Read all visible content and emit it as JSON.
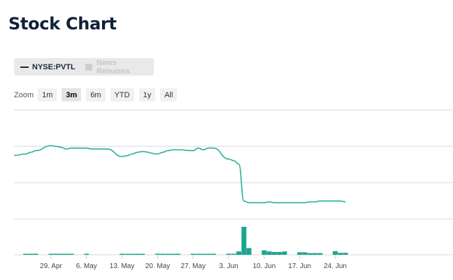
{
  "page": {
    "title": "Stock Chart"
  },
  "legend": {
    "series_label": "NYSE:PVTL",
    "news_label": "News Releases"
  },
  "zoom": {
    "label": "Zoom",
    "buttons": [
      {
        "label": "1m",
        "active": false
      },
      {
        "label": "3m",
        "active": true
      },
      {
        "label": "6m",
        "active": false
      },
      {
        "label": "YTD",
        "active": false
      },
      {
        "label": "1y",
        "active": false
      },
      {
        "label": "All",
        "active": false
      }
    ]
  },
  "colors": {
    "line": "#26b19a",
    "volume": "#1aa58e",
    "grid": "#d9d9d9",
    "title": "#0e2238"
  },
  "chart_data": {
    "type": "line",
    "title": "",
    "xlabel": "",
    "ylabel": "",
    "x_ticks": [
      "29. Apr",
      "6. May",
      "13. May",
      "20. May",
      "27. May",
      "3. Jun",
      "10. Jun",
      "17. Jun",
      "24. Jun"
    ],
    "price_index_range": [
      0,
      100
    ],
    "series": [
      {
        "name": "NYSE:PVTL",
        "points": [
          [
            "2019-04-24",
            70
          ],
          [
            "2019-04-25",
            72
          ],
          [
            "2019-04-26",
            74
          ],
          [
            "2019-04-29",
            80
          ],
          [
            "2019-04-30",
            79
          ],
          [
            "2019-05-01",
            78
          ],
          [
            "2019-05-02",
            76
          ],
          [
            "2019-05-03",
            77
          ],
          [
            "2019-05-06",
            77
          ],
          [
            "2019-05-07",
            76
          ],
          [
            "2019-05-08",
            76
          ],
          [
            "2019-05-09",
            76
          ],
          [
            "2019-05-10",
            76
          ],
          [
            "2019-05-13",
            67
          ],
          [
            "2019-05-14",
            68
          ],
          [
            "2019-05-15",
            70
          ],
          [
            "2019-05-16",
            72
          ],
          [
            "2019-05-17",
            73
          ],
          [
            "2019-05-20",
            70
          ],
          [
            "2019-05-21",
            72
          ],
          [
            "2019-05-22",
            74
          ],
          [
            "2019-05-23",
            75
          ],
          [
            "2019-05-24",
            75
          ],
          [
            "2019-05-27",
            74
          ],
          [
            "2019-05-28",
            77
          ],
          [
            "2019-05-29",
            75
          ],
          [
            "2019-05-30",
            77
          ],
          [
            "2019-05-31",
            77
          ],
          [
            "2019-06-03",
            64
          ],
          [
            "2019-06-04",
            62
          ],
          [
            "2019-06-05",
            58
          ],
          [
            "2019-06-06",
            14
          ],
          [
            "2019-06-07",
            12
          ],
          [
            "2019-06-10",
            12
          ],
          [
            "2019-06-11",
            13
          ],
          [
            "2019-06-12",
            12
          ],
          [
            "2019-06-13",
            12
          ],
          [
            "2019-06-14",
            12
          ],
          [
            "2019-06-17",
            12
          ],
          [
            "2019-06-18",
            12
          ],
          [
            "2019-06-19",
            13
          ],
          [
            "2019-06-20",
            13
          ],
          [
            "2019-06-21",
            14
          ],
          [
            "2019-06-24",
            14
          ],
          [
            "2019-06-25",
            14
          ],
          [
            "2019-06-26",
            13
          ]
        ]
      }
    ],
    "volume_range": [
      0,
      100
    ],
    "volume": [
      [
        "2019-04-24",
        2
      ],
      [
        "2019-04-25",
        2
      ],
      [
        "2019-04-26",
        2
      ],
      [
        "2019-04-29",
        2
      ],
      [
        "2019-04-30",
        3
      ],
      [
        "2019-05-01",
        2
      ],
      [
        "2019-05-02",
        2
      ],
      [
        "2019-05-03",
        2
      ],
      [
        "2019-05-06",
        2
      ],
      [
        "2019-05-13",
        2
      ],
      [
        "2019-05-14",
        2
      ],
      [
        "2019-05-15",
        2
      ],
      [
        "2019-05-16",
        2
      ],
      [
        "2019-05-17",
        2
      ],
      [
        "2019-05-20",
        2
      ],
      [
        "2019-05-21",
        2
      ],
      [
        "2019-05-22",
        2
      ],
      [
        "2019-05-23",
        2
      ],
      [
        "2019-05-24",
        2
      ],
      [
        "2019-05-27",
        3
      ],
      [
        "2019-05-28",
        3
      ],
      [
        "2019-05-29",
        2
      ],
      [
        "2019-05-30",
        2
      ],
      [
        "2019-05-31",
        2
      ],
      [
        "2019-06-03",
        3
      ],
      [
        "2019-06-04",
        3
      ],
      [
        "2019-06-05",
        12
      ],
      [
        "2019-06-06",
        100
      ],
      [
        "2019-06-07",
        24
      ],
      [
        "2019-06-10",
        16
      ],
      [
        "2019-06-11",
        12
      ],
      [
        "2019-06-12",
        10
      ],
      [
        "2019-06-13",
        10
      ],
      [
        "2019-06-14",
        12
      ],
      [
        "2019-06-17",
        9
      ],
      [
        "2019-06-18",
        9
      ],
      [
        "2019-06-19",
        6
      ],
      [
        "2019-06-20",
        6
      ],
      [
        "2019-06-21",
        6
      ],
      [
        "2019-06-24",
        13
      ],
      [
        "2019-06-25",
        7
      ],
      [
        "2019-06-26",
        7
      ]
    ],
    "grid": true,
    "legend_position": "top-left"
  }
}
